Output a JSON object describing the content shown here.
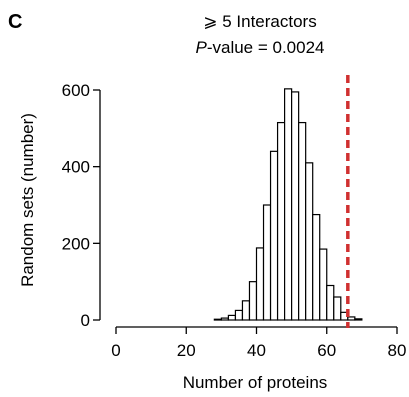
{
  "panel_label": "C",
  "chart_data": {
    "type": "bar",
    "title": "⩾ 5 Interactors",
    "subtitle_prefix": "P",
    "subtitle_suffix": "-value = 0.0024",
    "xlabel": "Number of proteins",
    "ylabel": "Random sets (number)",
    "xlim": [
      0,
      80
    ],
    "ylim": [
      0,
      600
    ],
    "xticks": [
      0,
      20,
      40,
      60,
      80
    ],
    "yticks": [
      0,
      200,
      400,
      600
    ],
    "bin_width": 2,
    "bins": [
      {
        "x": 28,
        "count": 2
      },
      {
        "x": 30,
        "count": 5
      },
      {
        "x": 32,
        "count": 12
      },
      {
        "x": 34,
        "count": 25
      },
      {
        "x": 36,
        "count": 50
      },
      {
        "x": 38,
        "count": 100
      },
      {
        "x": 40,
        "count": 188
      },
      {
        "x": 42,
        "count": 300
      },
      {
        "x": 44,
        "count": 440
      },
      {
        "x": 46,
        "count": 515
      },
      {
        "x": 48,
        "count": 603
      },
      {
        "x": 50,
        "count": 595
      },
      {
        "x": 52,
        "count": 515
      },
      {
        "x": 54,
        "count": 410
      },
      {
        "x": 56,
        "count": 275
      },
      {
        "x": 58,
        "count": 185
      },
      {
        "x": 60,
        "count": 90
      },
      {
        "x": 62,
        "count": 60
      },
      {
        "x": 64,
        "count": 20
      },
      {
        "x": 66,
        "count": 8
      },
      {
        "x": 68,
        "count": 3
      }
    ],
    "observed_value": 66,
    "observed_line_color": "#d03030",
    "grid": false
  }
}
